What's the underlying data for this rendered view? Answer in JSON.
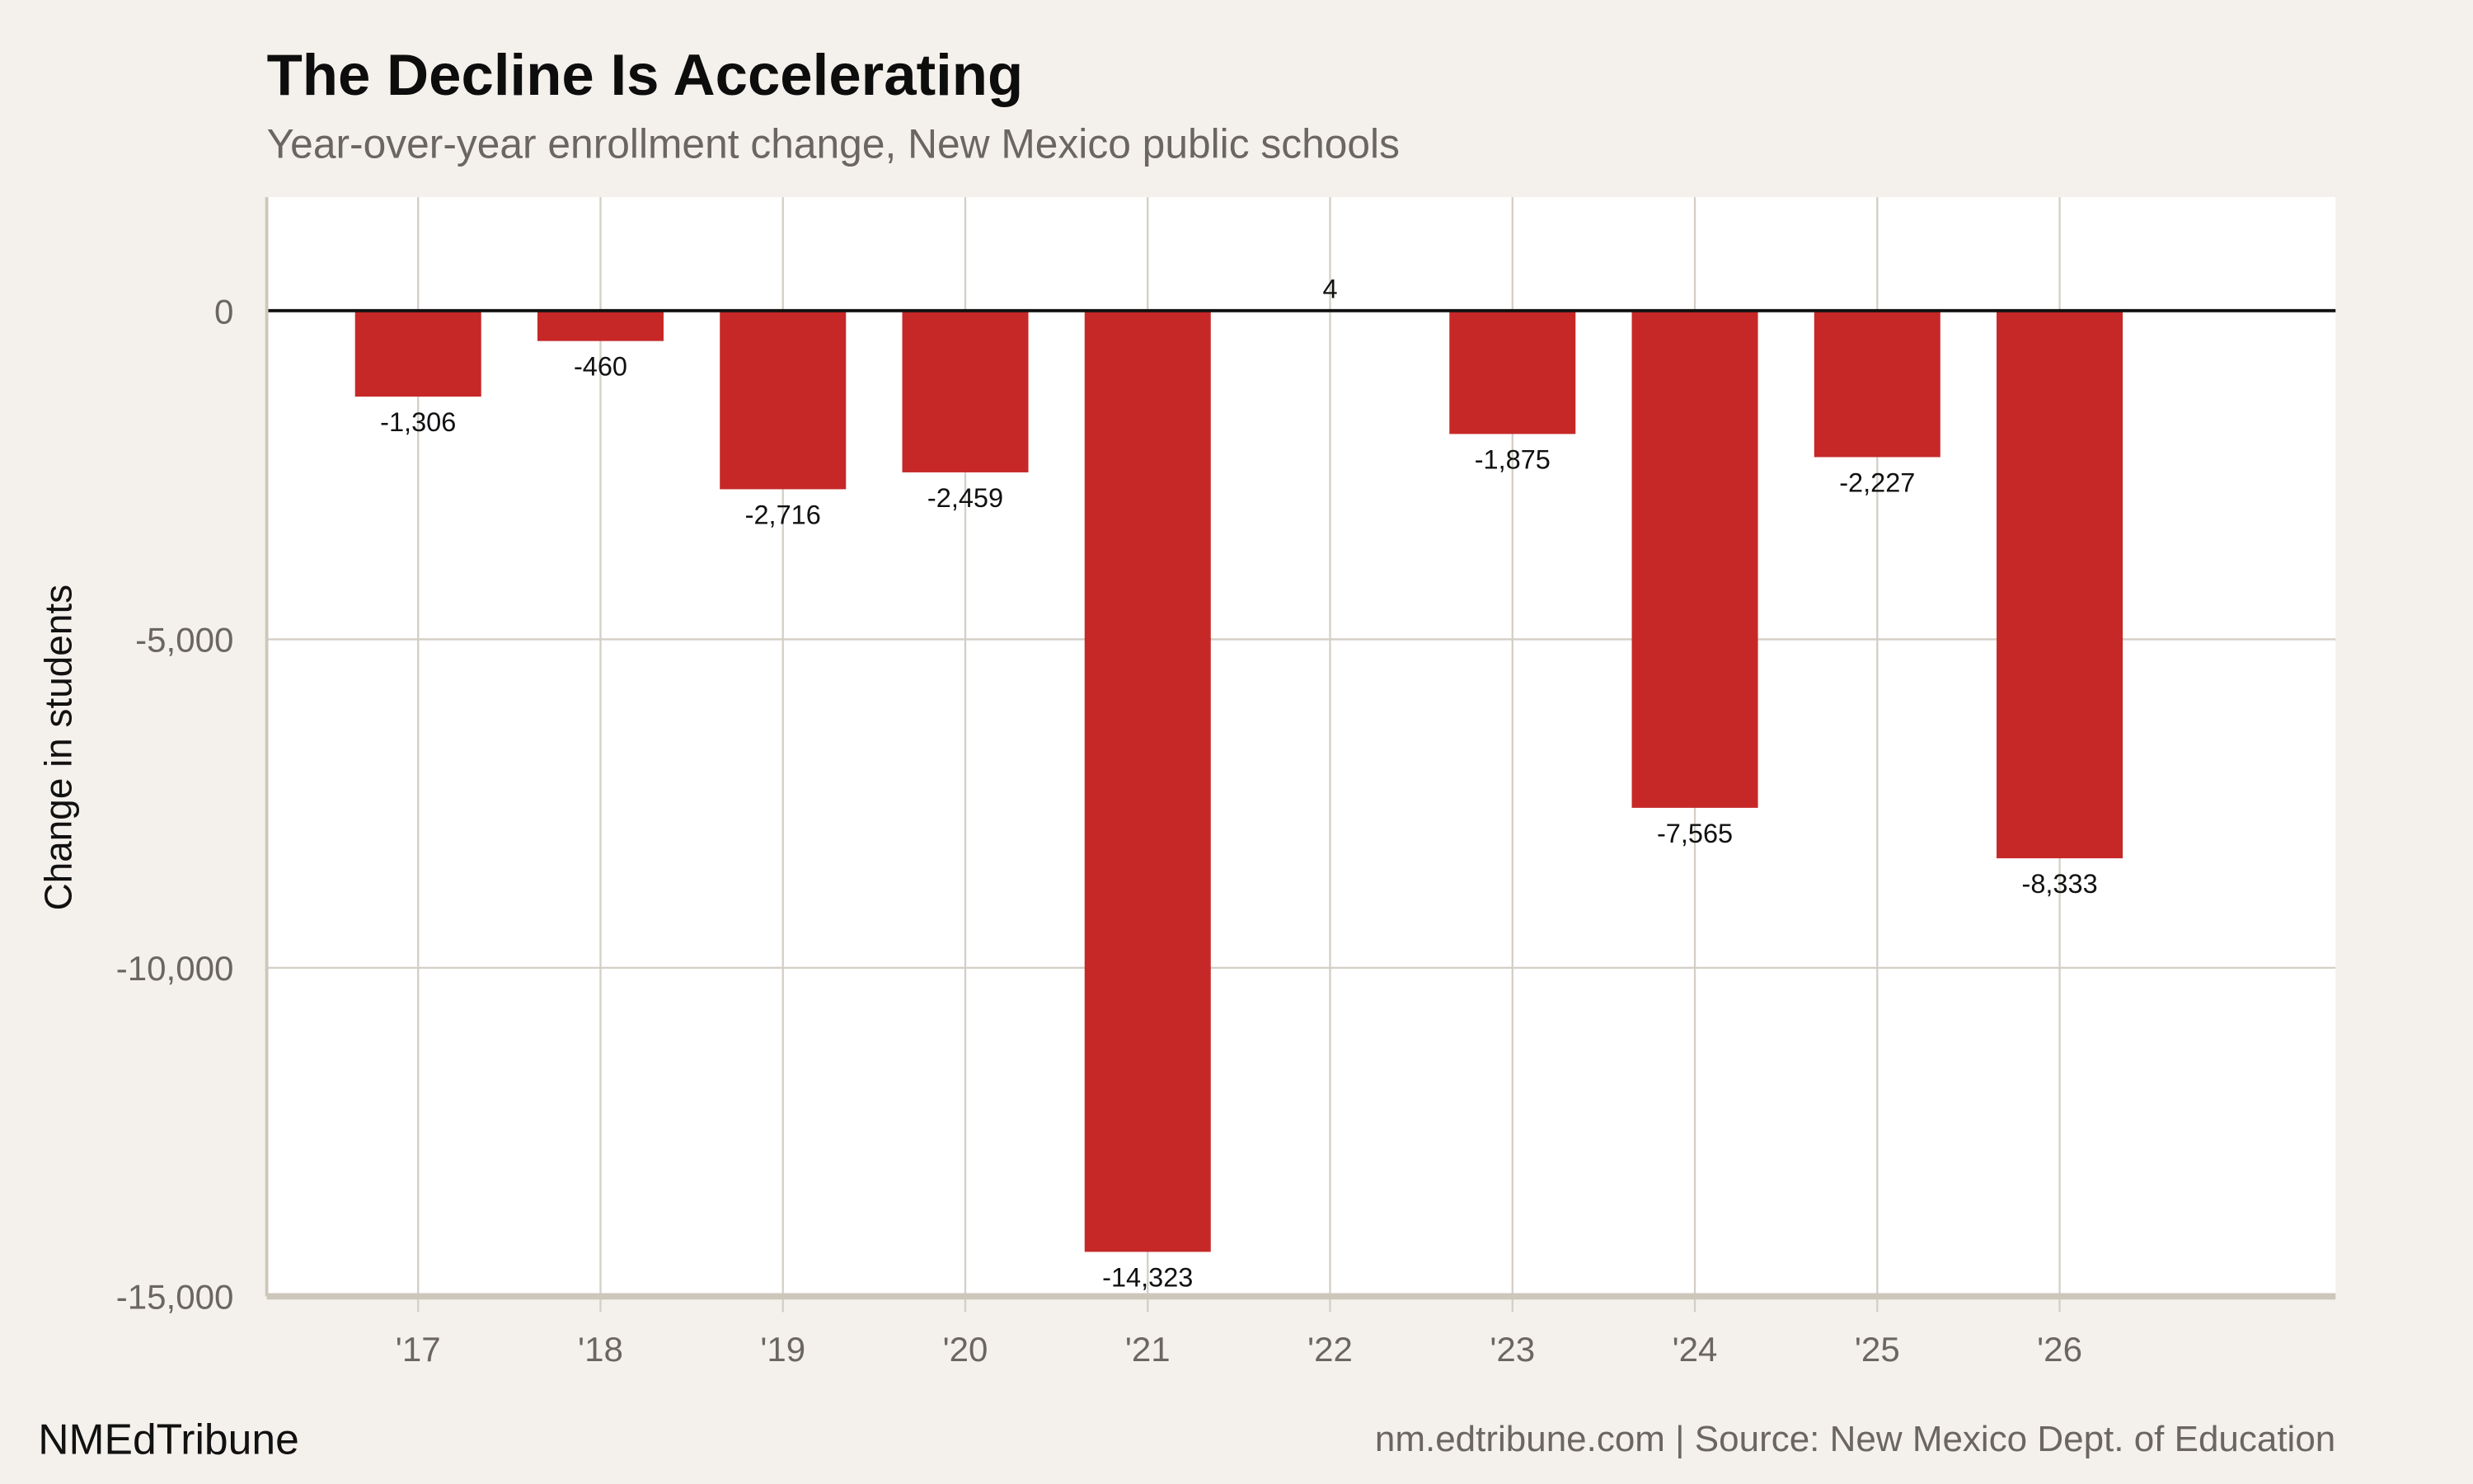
{
  "chart_data": {
    "type": "bar",
    "title": "The Decline Is Accelerating",
    "subtitle": "Year-over-year enrollment change, New Mexico public schools",
    "xlabel": "",
    "ylabel": "Change in students",
    "categories": [
      "'17",
      "'18",
      "'19",
      "'20",
      "'21",
      "'22",
      "'23",
      "'24",
      "'25",
      "'26"
    ],
    "values": [
      -1306,
      -460,
      -2716,
      -2459,
      -14323,
      4,
      -1875,
      -7565,
      -2227,
      -8333
    ],
    "data_labels": [
      "-1,306",
      "-460",
      "-2,716",
      "-2,459",
      "-14,323",
      "4",
      "-1,875",
      "-7,565",
      "-2,227",
      "-8,333"
    ],
    "ylim": [
      -15000,
      1730
    ],
    "yticks": [
      0,
      -5000,
      -10000,
      -15000
    ],
    "ytick_labels": [
      "0",
      "-5,000",
      "-10,000",
      "-15,000"
    ],
    "grid": true,
    "colors": {
      "bar": "#c62828",
      "background": "#f4f1ec",
      "plot_background": "#ffffff",
      "grid": "#d3cec6",
      "zero_line": "#111111"
    }
  },
  "footer": {
    "brand": "NMEdTribune",
    "source": "nm.edtribune.com | Source: New Mexico Dept. of Education"
  }
}
